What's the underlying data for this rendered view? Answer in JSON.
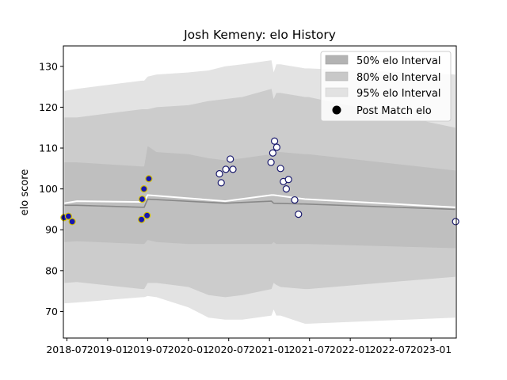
{
  "chart_data": {
    "type": "line",
    "title": "Josh Kemeny: elo History",
    "xlabel": "",
    "ylabel": "elo score",
    "x_range": [
      "2018-06-15",
      "2023-04-25"
    ],
    "ylim": [
      63.5,
      135
    ],
    "x_ticks": [
      "2018-07",
      "2019-01",
      "2019-07",
      "2020-01",
      "2020-07",
      "2021-01",
      "2021-07",
      "2022-01",
      "2022-07",
      "2023-01"
    ],
    "y_ticks": [
      70,
      80,
      90,
      100,
      110,
      120,
      130
    ],
    "grid": false,
    "legend_position": "top-right",
    "legend": [
      {
        "label": "50% elo Interval",
        "color": "#b3b3b3",
        "kind": "band"
      },
      {
        "label": "80% elo Interval",
        "color": "#c8c8c8",
        "kind": "band"
      },
      {
        "label": "95% elo Interval",
        "color": "#e2e2e2",
        "kind": "band"
      },
      {
        "label": "Post Match elo",
        "color": "#000000",
        "kind": "marker"
      }
    ],
    "colors": {
      "band_50": "#bfbfbf",
      "band_80": "#cccccc",
      "band_95": "#e3e3e3",
      "rating_line": "#ffffff",
      "mean_line": "#888888",
      "marker_edge_default": "#1a1a6e",
      "marker_fill_default": "#ffffff",
      "marker_edge_highlight": "#d4c200",
      "marker_fill_highlight": "#1616b0"
    },
    "x": [
      "2018-06-20",
      "2018-08-15",
      "2019-06-05",
      "2019-06-15",
      "2019-07-01",
      "2019-08-10",
      "2020-01-01",
      "2020-04-01",
      "2020-06-15",
      "2020-09-01",
      "2021-01-10",
      "2021-01-20",
      "2021-02-01",
      "2021-02-20",
      "2021-06-10",
      "2021-06-25",
      "2023-04-20"
    ],
    "band_95_upper": [
      124,
      124.5,
      126.5,
      126.5,
      127.5,
      128,
      128.5,
      129,
      130,
      130.5,
      131.5,
      128.5,
      130.5,
      130.5,
      129.5,
      129.5,
      128
    ],
    "band_95_lower": [
      72,
      72.2,
      73.5,
      73.5,
      73.8,
      73.5,
      71,
      68.5,
      68,
      68,
      69,
      70.5,
      69,
      69,
      67,
      67,
      68.5
    ],
    "band_80_upper": [
      117.5,
      117.5,
      119.5,
      119.5,
      119.5,
      120,
      120.5,
      121.5,
      122,
      122.5,
      124.5,
      122,
      123.5,
      123.5,
      122.5,
      122.5,
      115
    ],
    "band_80_lower": [
      77,
      77.2,
      75.5,
      75.5,
      77,
      77,
      76,
      74,
      73.5,
      74,
      75.5,
      77,
      76.5,
      76,
      75.5,
      75.5,
      78.5
    ],
    "band_50_upper": [
      106.5,
      106.5,
      105.5,
      105.5,
      110.5,
      109,
      108.5,
      107.5,
      107,
      107.5,
      108.5,
      108,
      109,
      109,
      108.5,
      108.5,
      104.5
    ],
    "band_50_lower": [
      87,
      87.2,
      86.5,
      86.5,
      87.5,
      87,
      86.5,
      86.5,
      86.5,
      86.5,
      86.5,
      87,
      86.5,
      86.5,
      86.5,
      86.5,
      85.5
    ],
    "series": [
      {
        "name": "",
        "style": "white",
        "x": [
          "2018-06-20",
          "2018-08-15",
          "2019-06-05",
          "2019-06-15",
          "2019-07-01",
          "2020-06-15",
          "2021-01-10",
          "2021-01-20",
          "2021-06-10",
          "2023-04-20"
        ],
        "values": [
          96.5,
          97,
          96.8,
          97,
          98.5,
          97,
          98.5,
          98.5,
          97.5,
          95.5
        ]
      },
      {
        "name": "",
        "style": "gray",
        "x": [
          "2018-06-20",
          "2018-08-15",
          "2019-06-05",
          "2019-06-15",
          "2019-07-01",
          "2020-06-15",
          "2021-01-10",
          "2021-01-20",
          "2021-06-10",
          "2023-04-20"
        ],
        "values": [
          96,
          96,
          95.5,
          95.5,
          97.5,
          96.5,
          97,
          96.5,
          96.3,
          95
        ]
      }
    ],
    "points": [
      {
        "date": "2018-06-18",
        "elo": 93,
        "highlight": true
      },
      {
        "date": "2018-07-08",
        "elo": 93.3,
        "highlight": true
      },
      {
        "date": "2018-07-25",
        "elo": 92,
        "highlight": true
      },
      {
        "date": "2019-06-03",
        "elo": 92.5,
        "highlight": true
      },
      {
        "date": "2019-06-06",
        "elo": 97.5,
        "highlight": true
      },
      {
        "date": "2019-06-14",
        "elo": 100,
        "highlight": true
      },
      {
        "date": "2019-06-28",
        "elo": 93.5,
        "highlight": true
      },
      {
        "date": "2019-07-06",
        "elo": 102.5,
        "highlight": true
      },
      {
        "date": "2020-05-20",
        "elo": 103.7,
        "highlight": false
      },
      {
        "date": "2020-05-28",
        "elo": 101.5,
        "highlight": false
      },
      {
        "date": "2020-06-18",
        "elo": 104.8,
        "highlight": false
      },
      {
        "date": "2020-07-08",
        "elo": 107.3,
        "highlight": false
      },
      {
        "date": "2020-07-20",
        "elo": 104.8,
        "highlight": false
      },
      {
        "date": "2021-01-08",
        "elo": 106.5,
        "highlight": false
      },
      {
        "date": "2021-01-16",
        "elo": 108.8,
        "highlight": false
      },
      {
        "date": "2021-01-24",
        "elo": 111.7,
        "highlight": false
      },
      {
        "date": "2021-02-03",
        "elo": 110.2,
        "highlight": false
      },
      {
        "date": "2021-02-20",
        "elo": 105,
        "highlight": false
      },
      {
        "date": "2021-03-05",
        "elo": 101.8,
        "highlight": false
      },
      {
        "date": "2021-03-18",
        "elo": 100,
        "highlight": false
      },
      {
        "date": "2021-03-28",
        "elo": 102.3,
        "highlight": false
      },
      {
        "date": "2021-04-25",
        "elo": 97.3,
        "highlight": false
      },
      {
        "date": "2021-05-12",
        "elo": 93.8,
        "highlight": false
      },
      {
        "date": "2023-04-22",
        "elo": 92,
        "highlight": false
      }
    ]
  }
}
